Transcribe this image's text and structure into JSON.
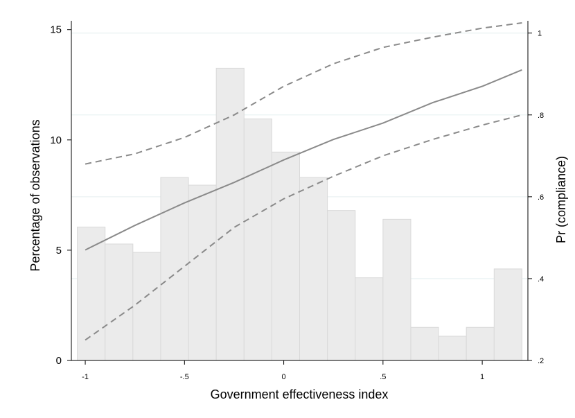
{
  "chart_data": {
    "type": "bar",
    "title": "",
    "xlabel": "Government effectiveness index",
    "ylabel_left": "Percentage of observations",
    "ylabel_right": "Pr (compliance)",
    "xlim": [
      -1.07,
      1.23
    ],
    "ylim_left": [
      0,
      15.4
    ],
    "ylim_right": [
      0.2,
      1.03
    ],
    "grid": true,
    "legend": "none",
    "x_ticks": [
      {
        "value": -1,
        "label": "-1"
      },
      {
        "value": -0.5,
        "label": "-.5"
      },
      {
        "value": 0,
        "label": "0"
      },
      {
        "value": 0.5,
        "label": ".5"
      },
      {
        "value": 1,
        "label": "1"
      }
    ],
    "y_left_ticks": [
      {
        "value": 0,
        "label": "0"
      },
      {
        "value": 5,
        "label": "5"
      },
      {
        "value": 10,
        "label": "10"
      },
      {
        "value": 15,
        "label": "15"
      }
    ],
    "y_right_ticks": [
      {
        "value": 0.2,
        "label": ".2"
      },
      {
        "value": 0.4,
        "label": ".4"
      },
      {
        "value": 0.6,
        "label": ".6"
      },
      {
        "value": 0.8,
        "label": ".8"
      },
      {
        "value": 1.0,
        "label": "1"
      }
    ],
    "histogram": {
      "bin_width": 0.14,
      "bins": [
        {
          "x0": -1.04,
          "value": 6.05
        },
        {
          "x0": -0.9,
          "value": 5.28
        },
        {
          "x0": -0.76,
          "value": 4.9
        },
        {
          "x0": -0.62,
          "value": 8.3
        },
        {
          "x0": -0.48,
          "value": 7.95
        },
        {
          "x0": -0.34,
          "value": 13.25
        },
        {
          "x0": -0.2,
          "value": 10.95
        },
        {
          "x0": -0.06,
          "value": 9.45
        },
        {
          "x0": 0.08,
          "value": 8.3
        },
        {
          "x0": 0.22,
          "value": 6.8
        },
        {
          "x0": 0.36,
          "value": 3.75
        },
        {
          "x0": 0.5,
          "value": 6.4
        },
        {
          "x0": 0.64,
          "value": 1.5
        },
        {
          "x0": 0.78,
          "value": 1.1
        },
        {
          "x0": 0.92,
          "value": 1.5
        },
        {
          "x0": 1.06,
          "value": 4.15
        }
      ]
    },
    "prediction": {
      "x": [
        -1.0,
        -0.75,
        -0.5,
        -0.25,
        0.0,
        0.25,
        0.5,
        0.75,
        1.0,
        1.2
      ],
      "estimate": [
        0.47,
        0.53,
        0.585,
        0.635,
        0.69,
        0.74,
        0.78,
        0.83,
        0.87,
        0.91
      ],
      "upper": [
        0.68,
        0.705,
        0.745,
        0.8,
        0.87,
        0.925,
        0.965,
        0.99,
        1.012,
        1.025
      ],
      "lower": [
        0.25,
        0.335,
        0.43,
        0.525,
        0.595,
        0.65,
        0.7,
        0.74,
        0.775,
        0.8
      ]
    },
    "colors": {
      "bar_fill": "#ebebeb",
      "bar_stroke": "#d9d9d9",
      "line": "#8a8a8a",
      "grid": "#eaf2f3",
      "axis": "#000000"
    }
  }
}
